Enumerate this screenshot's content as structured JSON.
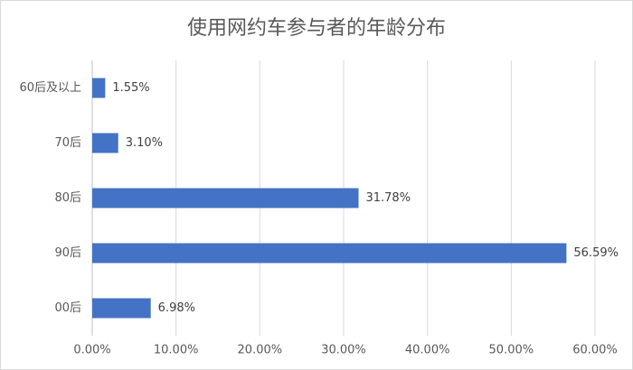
{
  "chart_data": {
    "type": "bar",
    "orientation": "horizontal",
    "title": "使用网约车参与者的年龄分布",
    "categories": [
      "60后及以上",
      "70后",
      "80后",
      "90后",
      "00后"
    ],
    "values": [
      1.55,
      3.1,
      31.78,
      56.59,
      6.98
    ],
    "value_labels": [
      "1.55%",
      "3.10%",
      "31.78%",
      "56.59%",
      "6.98%"
    ],
    "color": "#4472c4",
    "xlim": [
      0,
      60
    ],
    "xticks": [
      {
        "value": 0,
        "label": "0.00%"
      },
      {
        "value": 10,
        "label": "10.00%"
      },
      {
        "value": 20,
        "label": "20.00%"
      },
      {
        "value": 30,
        "label": "30.00%"
      },
      {
        "value": 40,
        "label": "40.00%"
      },
      {
        "value": 50,
        "label": "50.00%"
      },
      {
        "value": 60,
        "label": "60.00%"
      }
    ],
    "grid": true
  }
}
